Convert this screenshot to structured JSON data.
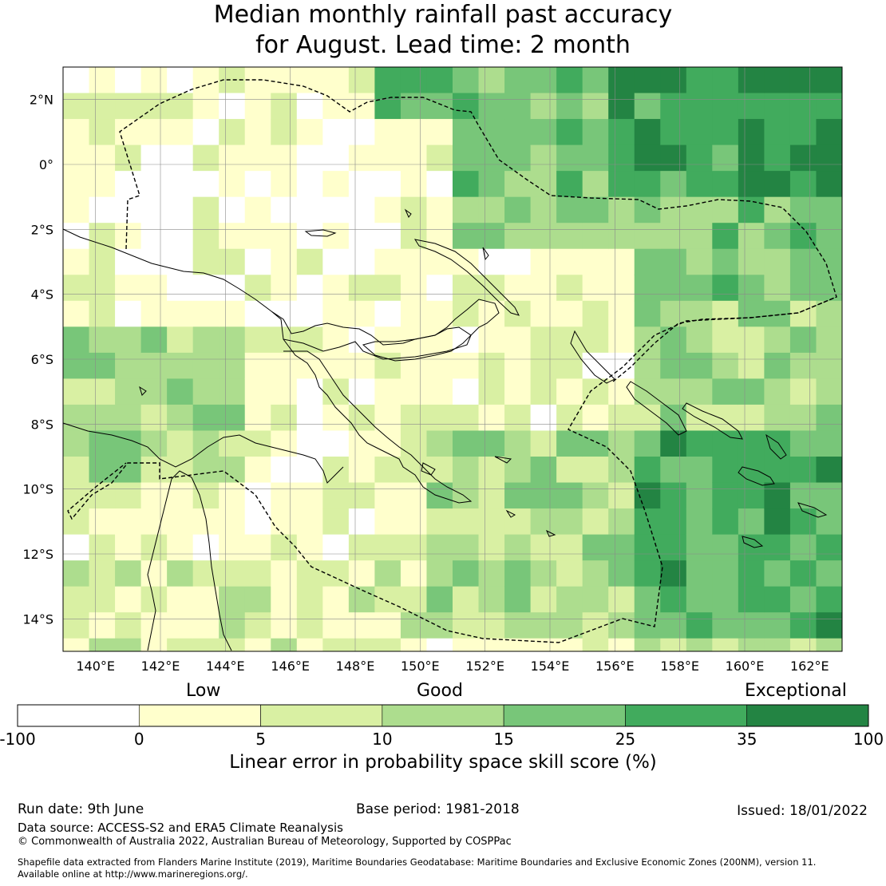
{
  "title": {
    "line1": "Median monthly rainfall past accuracy",
    "line2": "for August. Lead time: 2 month"
  },
  "map": {
    "lon_ticks": [
      "140°E",
      "142°E",
      "144°E",
      "146°E",
      "148°E",
      "150°E",
      "152°E",
      "154°E",
      "156°E",
      "158°E",
      "160°E",
      "162°E"
    ],
    "lat_ticks": [
      "2°N",
      "0°",
      "2°S",
      "4°S",
      "6°S",
      "8°S",
      "10°S",
      "12°S",
      "14°S"
    ],
    "extent": {
      "lon": [
        139.0,
        163.0
      ],
      "lat": [
        -15.0,
        3.0
      ]
    }
  },
  "colorbar": {
    "category_labels": [
      "Low",
      "Good",
      "Exceptional"
    ],
    "tick_labels": [
      "-100",
      "0",
      "5",
      "10",
      "15",
      "25",
      "35",
      "100"
    ],
    "colors": [
      "#ffffff",
      "#ffffcc",
      "#d9f0a3",
      "#addd8e",
      "#78c679",
      "#41ab5d",
      "#238443"
    ],
    "axis_label": "Linear error in probability space skill score (%)"
  },
  "footer": {
    "run_date": "Run date: 9th June",
    "base_period": "Base period: 1981-2018",
    "issued": "Issued: 18/01/2022",
    "data_source": "Data source: ACCESS-S2 and ERA5 Climate Reanalysis",
    "copyright": "© Commonwealth of Australia 2022, Australian Bureau of Meteorology, Supported by COSPPac",
    "shapefile_line1": "Shapefile data extracted from Flanders Marine Institute (2019), Maritime Boundaries Geodatabase: Maritime Boundaries and Exclusive Economic Zones (200NM), version 11.",
    "shapefile_line2": "Available online at http://www.marineregions.org/."
  }
}
